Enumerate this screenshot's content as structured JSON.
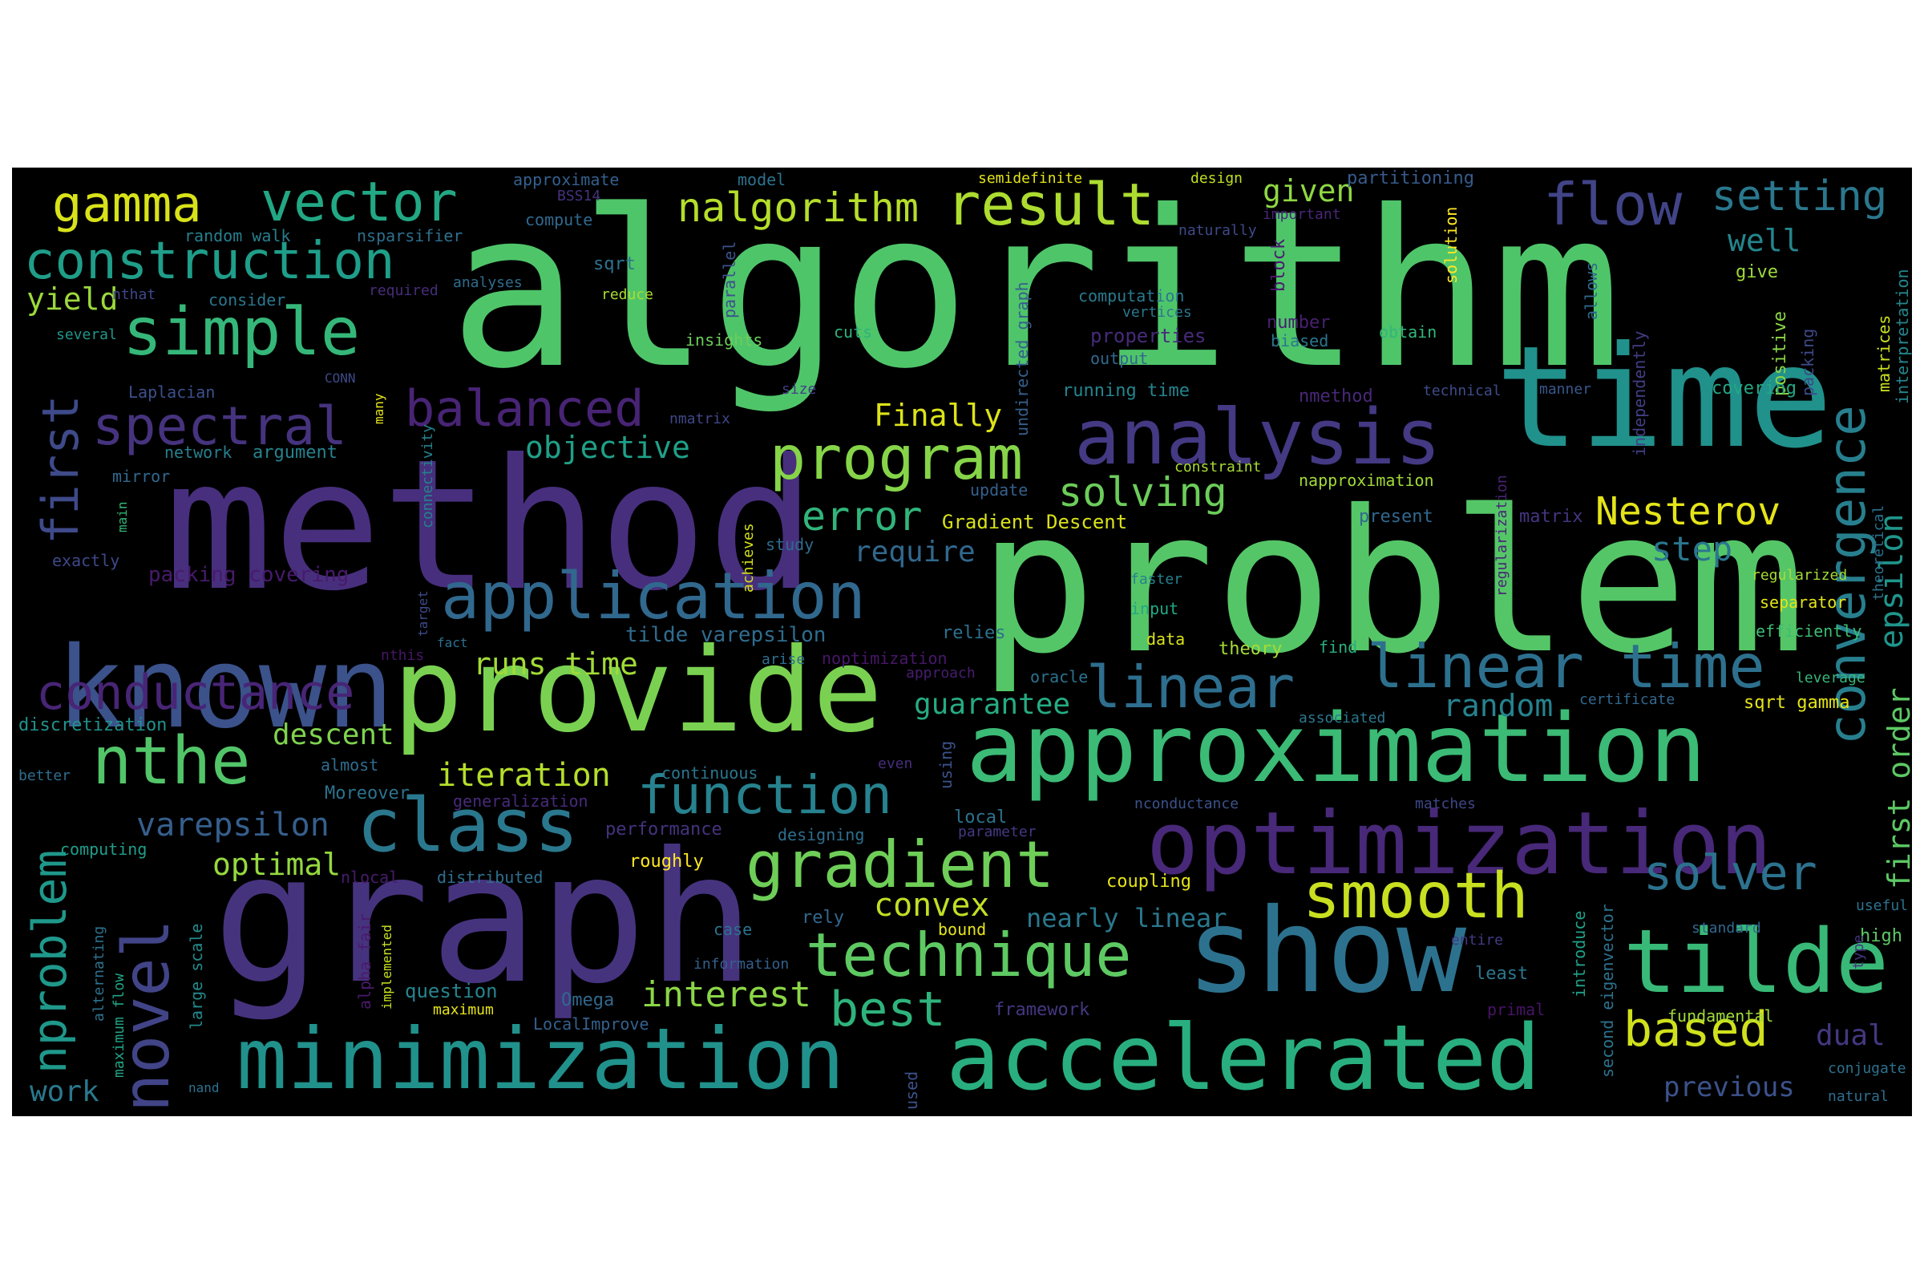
{
  "wordcloud": {
    "background": "#000000",
    "palette": "viridis",
    "words": [
      {
        "text": "algorithm",
        "color": "#4fc56a"
      },
      {
        "text": "problem",
        "color": "#55c667"
      },
      {
        "text": "method",
        "color": "#472f7d"
      },
      {
        "text": "graph",
        "color": "#46337e"
      },
      {
        "text": "time",
        "color": "#21918c"
      },
      {
        "text": "provide",
        "color": "#7ad151"
      },
      {
        "text": "approximation",
        "color": "#3bbb75"
      },
      {
        "text": "known",
        "color": "#3b528b"
      },
      {
        "text": "show",
        "color": "#2c728e"
      },
      {
        "text": "optimization",
        "color": "#482878"
      },
      {
        "text": "accelerated",
        "color": "#29af7f"
      },
      {
        "text": "minimization",
        "color": "#21918c"
      },
      {
        "text": "analysis",
        "color": "#443983"
      },
      {
        "text": "tilde",
        "color": "#38b977"
      },
      {
        "text": "application",
        "color": "#31688e"
      },
      {
        "text": "class",
        "color": "#2a788e"
      },
      {
        "text": "gradient",
        "color": "#6ece58"
      },
      {
        "text": "technique",
        "color": "#5ec962"
      },
      {
        "text": "linear time",
        "color": "#2d708e"
      },
      {
        "text": "program",
        "color": "#86d549"
      },
      {
        "text": "novel",
        "color": "#414487"
      },
      {
        "text": "smooth",
        "color": "#c8e020"
      },
      {
        "text": "function",
        "color": "#26828e"
      },
      {
        "text": "convergence",
        "color": "#277f8e"
      },
      {
        "text": "simple",
        "color": "#35b779"
      },
      {
        "text": "construction",
        "color": "#1f9e89"
      },
      {
        "text": "vector",
        "color": "#22a884"
      },
      {
        "text": "gamma",
        "color": "#d8e219"
      },
      {
        "text": "result",
        "color": "#addc30"
      },
      {
        "text": "flow",
        "color": "#414487"
      },
      {
        "text": "spectral",
        "color": "#46337e"
      },
      {
        "text": "balanced",
        "color": "#482475"
      },
      {
        "text": "conductance",
        "color": "#482576"
      },
      {
        "text": "nthe",
        "color": "#52c569"
      },
      {
        "text": "nproblem",
        "color": "#1f988b"
      },
      {
        "text": "linear",
        "color": "#2e6e8e"
      },
      {
        "text": "solver",
        "color": "#2c728e"
      },
      {
        "text": "based",
        "color": "#d0e11c"
      },
      {
        "text": "best",
        "color": "#2eb37c"
      },
      {
        "text": "nalgorithm",
        "color": "#b5de2b"
      },
      {
        "text": "first",
        "color": "#3e4a89"
      },
      {
        "text": "setting",
        "color": "#2a788e"
      },
      {
        "text": "interest",
        "color": "#8bd646"
      },
      {
        "text": "solving",
        "color": "#6ccd5a"
      },
      {
        "text": "error",
        "color": "#31b57b"
      },
      {
        "text": "Nesterov",
        "color": "#e5e419"
      },
      {
        "text": "iteration",
        "color": "#b5de2b"
      },
      {
        "text": "convex",
        "color": "#c0df25"
      },
      {
        "text": "varepsilon",
        "color": "#355f8d"
      },
      {
        "text": "objective",
        "color": "#1fa088"
      },
      {
        "text": "runs time",
        "color": "#a2da37"
      },
      {
        "text": "guarantee",
        "color": "#25ac82"
      },
      {
        "text": "random",
        "color": "#26828e"
      },
      {
        "text": "first order",
        "color": "#5cc863"
      },
      {
        "text": "epsilon",
        "color": "#1f958b"
      },
      {
        "text": "step",
        "color": "#2a768e"
      },
      {
        "text": "yield",
        "color": "#9bd93c"
      },
      {
        "text": "descent",
        "color": "#7fd34e"
      },
      {
        "text": "optimal",
        "color": "#95d840"
      },
      {
        "text": "given",
        "color": "#8fd744"
      },
      {
        "text": "Finally",
        "color": "#dde318"
      },
      {
        "text": "require",
        "color": "#31688e"
      },
      {
        "text": "well",
        "color": "#24868e"
      },
      {
        "text": "work",
        "color": "#2a788e"
      },
      {
        "text": "previous",
        "color": "#3b528b"
      },
      {
        "text": "nearly linear",
        "color": "#2a788e"
      },
      {
        "text": "dual",
        "color": "#453781"
      },
      {
        "text": "Gradient Descent",
        "color": "#d8e219"
      },
      {
        "text": "tilde varepsilon",
        "color": "#2f6c8e"
      },
      {
        "text": "approximate",
        "color": "#34608d"
      },
      {
        "text": "model",
        "color": "#2c738e"
      },
      {
        "text": "semidefinite",
        "color": "#e2e418"
      },
      {
        "text": "design",
        "color": "#c2df23"
      },
      {
        "text": "partitioning",
        "color": "#375b8d"
      },
      {
        "text": "BSS14",
        "color": "#46327e"
      },
      {
        "text": "compute",
        "color": "#30698e"
      },
      {
        "text": "random walk",
        "color": "#277f8e"
      },
      {
        "text": "nsparsifier",
        "color": "#2e6f8e"
      },
      {
        "text": "sqrt",
        "color": "#2c738e"
      },
      {
        "text": "nthat",
        "color": "#3f4889"
      },
      {
        "text": "consider",
        "color": "#2a778e"
      },
      {
        "text": "required",
        "color": "#472d7b"
      },
      {
        "text": "analyses",
        "color": "#2e6d8e"
      },
      {
        "text": "reduce",
        "color": "#addc30"
      },
      {
        "text": "several",
        "color": "#1f968b"
      },
      {
        "text": "parallel",
        "color": "#3b528b"
      },
      {
        "text": "cuts",
        "color": "#2eb37c"
      },
      {
        "text": "insights",
        "color": "#6ccd5a"
      },
      {
        "text": "undirected graph",
        "color": "#35608d"
      },
      {
        "text": "computation",
        "color": "#29798e"
      },
      {
        "text": "vertices",
        "color": "#2a788e"
      },
      {
        "text": "properties",
        "color": "#472a7a"
      },
      {
        "text": "output",
        "color": "#31688e"
      },
      {
        "text": "number",
        "color": "#482071"
      },
      {
        "text": "biased",
        "color": "#2a778e"
      },
      {
        "text": "obtain",
        "color": "#32b67a"
      },
      {
        "text": "naturally",
        "color": "#3e4989"
      },
      {
        "text": "important",
        "color": "#482677"
      },
      {
        "text": "block",
        "color": "#481b6d"
      },
      {
        "text": "solution",
        "color": "#fde725"
      },
      {
        "text": "allows",
        "color": "#2f6b8e"
      },
      {
        "text": "independently",
        "color": "#433e85"
      },
      {
        "text": "give",
        "color": "#9fda3a"
      },
      {
        "text": "positive",
        "color": "#8bd646"
      },
      {
        "text": "packing",
        "color": "#3e4989"
      },
      {
        "text": "matrices",
        "color": "#cae11f"
      },
      {
        "text": "interpretation",
        "color": "#24868e"
      },
      {
        "text": "Laplacian",
        "color": "#3c508b"
      },
      {
        "text": "CONN",
        "color": "#3e4a89"
      },
      {
        "text": "many",
        "color": "#e5e419"
      },
      {
        "text": "connectivity",
        "color": "#26818e"
      },
      {
        "text": "nmatrix",
        "color": "#3f4788"
      },
      {
        "text": "size",
        "color": "#433e85"
      },
      {
        "text": "running time",
        "color": "#25848e"
      },
      {
        "text": "nmethod",
        "color": "#482878"
      },
      {
        "text": "technical",
        "color": "#3e4c8a"
      },
      {
        "text": "manner",
        "color": "#38588c"
      },
      {
        "text": "covering",
        "color": "#22a884"
      },
      {
        "text": "network",
        "color": "#277f8e"
      },
      {
        "text": "argument",
        "color": "#26828e"
      },
      {
        "text": "mirror",
        "color": "#31688e"
      },
      {
        "text": "main",
        "color": "#35b779"
      },
      {
        "text": "exactly",
        "color": "#3f4889"
      },
      {
        "text": "constraint",
        "color": "#a8db34"
      },
      {
        "text": "update",
        "color": "#35608d"
      },
      {
        "text": "napproximation",
        "color": "#a2da37"
      },
      {
        "text": "regularization",
        "color": "#482475"
      },
      {
        "text": "present",
        "color": "#31688e"
      },
      {
        "text": "matrix",
        "color": "#453581"
      },
      {
        "text": "study",
        "color": "#2f6b8e"
      },
      {
        "text": "achieves",
        "color": "#d5e21a"
      },
      {
        "text": "theoretical",
        "color": "#2c718e"
      },
      {
        "text": "regularized",
        "color": "#a5db36"
      },
      {
        "text": "separator",
        "color": "#e2e418"
      },
      {
        "text": "packing covering",
        "color": "#481a6c"
      },
      {
        "text": "faster",
        "color": "#26818e"
      },
      {
        "text": "input",
        "color": "#22a884"
      },
      {
        "text": "target",
        "color": "#3e4c8a"
      },
      {
        "text": "fact",
        "color": "#2d718e"
      },
      {
        "text": "relies",
        "color": "#2c728e"
      },
      {
        "text": "data",
        "color": "#d8e219"
      },
      {
        "text": "theory",
        "color": "#a5db36"
      },
      {
        "text": "find",
        "color": "#29af7f"
      },
      {
        "text": "efficiently",
        "color": "#3dbc74"
      },
      {
        "text": "nthis",
        "color": "#481668"
      },
      {
        "text": "arise",
        "color": "#2e6f8e"
      },
      {
        "text": "noptimization",
        "color": "#481769"
      },
      {
        "text": "approach",
        "color": "#481d6f"
      },
      {
        "text": "oracle",
        "color": "#2c728e"
      },
      {
        "text": "leverage",
        "color": "#35b779"
      },
      {
        "text": "associated",
        "color": "#2a788e"
      },
      {
        "text": "certificate",
        "color": "#31688e"
      },
      {
        "text": "sqrt gamma",
        "color": "#e5e419"
      },
      {
        "text": "discretization",
        "color": "#21918c"
      },
      {
        "text": "better",
        "color": "#2e6e8e"
      },
      {
        "text": "almost",
        "color": "#2e6d8e"
      },
      {
        "text": "continuous",
        "color": "#2a768e"
      },
      {
        "text": "using",
        "color": "#3b528b"
      },
      {
        "text": "even",
        "color": "#472d7b"
      },
      {
        "text": "Moreover",
        "color": "#2c728e"
      },
      {
        "text": "generalization",
        "color": "#472a7a"
      },
      {
        "text": "nconductance",
        "color": "#3b528b"
      },
      {
        "text": "matches",
        "color": "#3f4788"
      },
      {
        "text": "computing",
        "color": "#1f9e89"
      },
      {
        "text": "performance",
        "color": "#46327e"
      },
      {
        "text": "designing",
        "color": "#2e6e8e"
      },
      {
        "text": "local",
        "color": "#2c728e"
      },
      {
        "text": "parameter",
        "color": "#443983"
      },
      {
        "text": "nlocal",
        "color": "#481b6d"
      },
      {
        "text": "distributed",
        "color": "#2e6f8e"
      },
      {
        "text": "roughly",
        "color": "#fde725"
      },
      {
        "text": "coupling",
        "color": "#e5e419"
      },
      {
        "text": "alternating",
        "color": "#2c728e"
      },
      {
        "text": "maximum flow",
        "color": "#20a486"
      },
      {
        "text": "large scale",
        "color": "#238a8d"
      },
      {
        "text": "alpha fair",
        "color": "#4a1a6c"
      },
      {
        "text": "implemented",
        "color": "#c8e020"
      },
      {
        "text": "rely",
        "color": "#31688e"
      },
      {
        "text": "case",
        "color": "#2c728e"
      },
      {
        "text": "bound",
        "color": "#e5e419"
      },
      {
        "text": "information",
        "color": "#34608d"
      },
      {
        "text": "entire",
        "color": "#443a83"
      },
      {
        "text": "introduce",
        "color": "#1fa088"
      },
      {
        "text": "second eigenvector",
        "color": "#2c728e"
      },
      {
        "text": "standard",
        "color": "#31688e"
      },
      {
        "text": "useful",
        "color": "#2c728e"
      },
      {
        "text": "high",
        "color": "#5cc863"
      },
      {
        "text": "type",
        "color": "#453581"
      },
      {
        "text": "question",
        "color": "#25848e"
      },
      {
        "text": "maximum",
        "color": "#e5e419"
      },
      {
        "text": "Omega",
        "color": "#31688e"
      },
      {
        "text": "LocalImprove",
        "color": "#34618d"
      },
      {
        "text": "framework",
        "color": "#453781"
      },
      {
        "text": "least",
        "color": "#2a788e"
      },
      {
        "text": "primal",
        "color": "#481467"
      },
      {
        "text": "fundamental",
        "color": "#9fda3a"
      },
      {
        "text": "conjugate",
        "color": "#2c728e"
      },
      {
        "text": "natural",
        "color": "#2e6e8e"
      },
      {
        "text": "nand",
        "color": "#2c728e"
      },
      {
        "text": "used",
        "color": "#3b528b"
      }
    ]
  }
}
